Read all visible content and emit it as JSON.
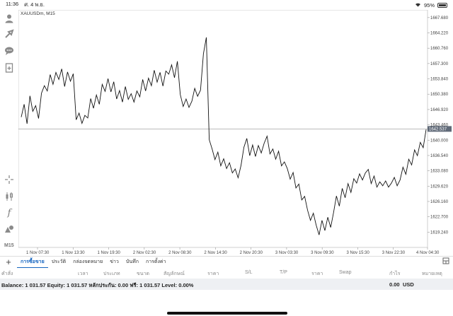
{
  "status_bar": {
    "time": "11:36",
    "date": "ศ. 4 พ.ย.",
    "battery": "95%"
  },
  "chart": {
    "symbol_label": "XAUUSDm, M15",
    "current_price": "1642.537",
    "timeframe": "M15",
    "y_ticks": [
      "1667.680",
      "1664.220",
      "1660.760",
      "1657.300",
      "1653.840",
      "1650.380",
      "1646.920",
      "1643.460",
      "1640.000",
      "1636.540",
      "1633.080",
      "1629.620",
      "1626.160",
      "1622.700",
      "1619.240"
    ],
    "x_ticks": [
      "1 Nov 07:30",
      "1 Nov 13:30",
      "1 Nov 19:30",
      "2 Nov 02:30",
      "2 Nov 08:30",
      "2 Nov 14:30",
      "2 Nov 20:30",
      "3 Nov 03:30",
      "3 Nov 09:30",
      "3 Nov 15:30",
      "3 Nov 22:30",
      "4 Nov 04:30"
    ],
    "series": [
      1645.2,
      1648.1,
      1643.7,
      1650.0,
      1646.5,
      1647.8,
      1644.9,
      1650.6,
      1652.3,
      1651.1,
      1654.8,
      1652.6,
      1655.3,
      1653.7,
      1656.1,
      1652.1,
      1655.4,
      1653.3,
      1655.0,
      1644.6,
      1646.1,
      1643.8,
      1645.6,
      1645.0,
      1649.4,
      1647.2,
      1650.2,
      1648.1,
      1652.6,
      1651.0,
      1653.9,
      1650.9,
      1653.2,
      1649.3,
      1651.2,
      1648.6,
      1652.1,
      1649.2,
      1650.5,
      1648.6,
      1651.1,
      1649.8,
      1653.7,
      1651.1,
      1654.0,
      1652.3,
      1655.8,
      1653.1,
      1655.3,
      1652.2,
      1655.6,
      1654.9,
      1657.0,
      1654.1,
      1657.8,
      1650.3,
      1647.6,
      1649.3,
      1647.4,
      1648.8,
      1651.7,
      1649.9,
      1651.3,
      1659.5,
      1663.2,
      1640.1,
      1638.0,
      1635.6,
      1637.3,
      1634.2,
      1635.8,
      1633.6,
      1634.9,
      1632.6,
      1633.5,
      1631.5,
      1634.3,
      1638.4,
      1640.4,
      1636.5,
      1638.9,
      1636.3,
      1638.8,
      1637.1,
      1639.3,
      1640.9,
      1636.9,
      1638.0,
      1635.7,
      1637.5,
      1634.2,
      1635.1,
      1633.6,
      1631.2,
      1632.7,
      1629.2,
      1630.1,
      1626.5,
      1627.3,
      1624.2,
      1621.9,
      1623.5,
      1620.8,
      1618.6,
      1621.9,
      1619.6,
      1622.6,
      1620.3,
      1623.7,
      1627.4,
      1625.1,
      1629.1,
      1627.0,
      1630.2,
      1628.2,
      1631.3,
      1630.3,
      1632.4,
      1631.0,
      1632.6,
      1633.4,
      1630.2,
      1631.9,
      1629.4,
      1630.6,
      1629.7,
      1630.8,
      1629.4,
      1630.3,
      1631.6,
      1629.7,
      1631.0,
      1633.9,
      1632.3,
      1635.7,
      1634.4,
      1637.8,
      1636.5,
      1639.5,
      1638.3,
      1642.4
    ]
  },
  "left_tools": [
    "user-icon",
    "signal-icon",
    "chat-icon",
    "document-icon",
    "crosshair-icon",
    "candles-icon",
    "indicator-icon",
    "objects-icon"
  ],
  "bottom_tabs": {
    "plus": "+",
    "tabs": [
      "การซื้อขาย",
      "ประวัติ",
      "กล่องจดหมาย",
      "ข่าว",
      "บันทึก",
      "การตั้งค่า"
    ],
    "active_index": 0
  },
  "columns": [
    "คำสั่ง",
    "เวลา",
    "ประเภท",
    "ขนาด",
    "สัญลักษณ์",
    "ราคา",
    "S/L",
    "T/P",
    "ราคา",
    "Swap",
    "กำไร",
    "หมายเหตุ"
  ],
  "account": {
    "summary": "Balance: 1 031.57 Equity: 1 031.57 หลักประกัน: 0.00 ฟรี: 1 031.57 Level: 0.00%",
    "profit": "0.00",
    "currency": "USD"
  }
}
